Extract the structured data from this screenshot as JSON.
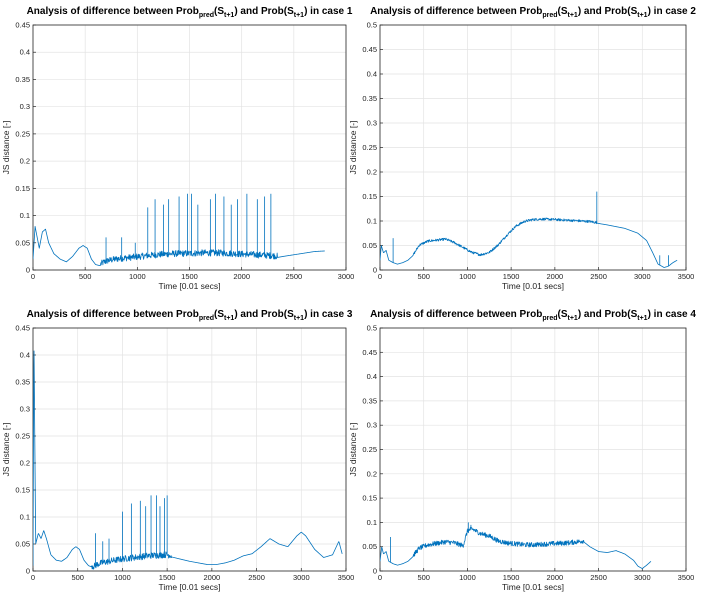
{
  "figure": {
    "line_color": "#0072BD",
    "grid_color": "#e3e3e3",
    "axis_color": "#262626"
  },
  "chart_data": [
    {
      "type": "line",
      "title_parts": [
        "Analysis of difference between Prob",
        "pred",
        "(S",
        "t+1",
        ") and Prob(S",
        "t+1",
        ") in case 1"
      ],
      "xlabel": "Time [0.01 secs]",
      "ylabel": "JS distance [-]",
      "xlim": [
        0,
        3000
      ],
      "ylim": [
        0,
        0.45
      ],
      "xticks": [
        0,
        500,
        1000,
        1500,
        2000,
        2500,
        3000
      ],
      "yticks": [
        0,
        0.05,
        0.1,
        0.15,
        0.2,
        0.25,
        0.3,
        0.35,
        0.4,
        0.45
      ],
      "grid": true,
      "series": [
        {
          "name": "JS distance",
          "x": [
            0,
            20,
            40,
            60,
            90,
            120,
            150,
            200,
            260,
            320,
            380,
            440,
            480,
            520,
            560,
            600,
            640,
            680,
            720,
            800,
            900,
            1000,
            1100,
            1200,
            1300,
            1400,
            1500,
            1600,
            1700,
            1800,
            1900,
            2000,
            2100,
            2200,
            2300,
            2340,
            2400,
            2500,
            2600,
            2700,
            2800
          ],
          "y": [
            0.02,
            0.08,
            0.06,
            0.04,
            0.07,
            0.075,
            0.05,
            0.03,
            0.02,
            0.015,
            0.025,
            0.04,
            0.045,
            0.04,
            0.02,
            0.01,
            0.008,
            0.012,
            0.015,
            0.018,
            0.02,
            0.022,
            0.024,
            0.026,
            0.027,
            0.028,
            0.028,
            0.029,
            0.029,
            0.029,
            0.028,
            0.027,
            0.026,
            0.025,
            0.024,
            0.023,
            0.025,
            0.028,
            0.031,
            0.034,
            0.035
          ],
          "spikes": [
            [
              1100,
              0.115
            ],
            [
              1170,
              0.13
            ],
            [
              1250,
              0.12
            ],
            [
              1300,
              0.13
            ],
            [
              1400,
              0.135
            ],
            [
              1480,
              0.14
            ],
            [
              1520,
              0.14
            ],
            [
              1580,
              0.12
            ],
            [
              1700,
              0.13
            ],
            [
              1750,
              0.14
            ],
            [
              1830,
              0.135
            ],
            [
              1900,
              0.12
            ],
            [
              1960,
              0.13
            ],
            [
              2050,
              0.14
            ],
            [
              2150,
              0.13
            ],
            [
              2220,
              0.135
            ],
            [
              2280,
              0.14
            ],
            [
              700,
              0.06
            ],
            [
              850,
              0.06
            ],
            [
              980,
              0.05
            ]
          ],
          "noise_range": [
            650,
            2340
          ],
          "noise_amplitude": 0.012
        }
      ]
    },
    {
      "type": "line",
      "title_parts": [
        "Analysis of difference between Prob",
        "pred",
        "(S",
        "t+1",
        ") and Prob(S",
        "t+1",
        ") in case 2"
      ],
      "xlabel": "Time [0.01 secs]",
      "ylabel": "JS distance [-]",
      "xlim": [
        0,
        3500
      ],
      "ylim": [
        0,
        0.5
      ],
      "xticks": [
        0,
        500,
        1000,
        1500,
        2000,
        2500,
        3000,
        3500
      ],
      "yticks": [
        0,
        0.05,
        0.1,
        0.15,
        0.2,
        0.25,
        0.3,
        0.35,
        0.4,
        0.45,
        0.5
      ],
      "grid": true,
      "series": [
        {
          "name": "JS distance",
          "x": [
            0,
            15,
            40,
            70,
            100,
            150,
            200,
            260,
            320,
            380,
            450,
            550,
            650,
            750,
            850,
            950,
            1050,
            1150,
            1250,
            1350,
            1450,
            1550,
            1650,
            1750,
            1850,
            2000,
            2200,
            2400,
            2500,
            2600,
            2800,
            2950,
            3050,
            3120,
            3180,
            3250,
            3300,
            3350,
            3400
          ],
          "y": [
            0.02,
            0.05,
            0.035,
            0.04,
            0.02,
            0.015,
            0.012,
            0.015,
            0.02,
            0.03,
            0.05,
            0.058,
            0.06,
            0.062,
            0.055,
            0.045,
            0.035,
            0.03,
            0.035,
            0.05,
            0.07,
            0.088,
            0.098,
            0.102,
            0.103,
            0.102,
            0.1,
            0.098,
            0.095,
            0.092,
            0.085,
            0.075,
            0.06,
            0.035,
            0.012,
            0.005,
            0.008,
            0.015,
            0.02
          ],
          "spikes": [
            [
              2480,
              0.16
            ],
            [
              150,
              0.065
            ],
            [
              3200,
              0.03
            ],
            [
              3300,
              0.03
            ]
          ],
          "noise_range": [
            380,
            2480
          ],
          "noise_amplitude": 0.005
        }
      ]
    },
    {
      "type": "line",
      "title_parts": [
        "Analysis of difference between Prob",
        "pred",
        "(S",
        "t+1",
        ") and Prob(S",
        "t+1",
        ") in case 3"
      ],
      "xlabel": "Time [0.01 secs]",
      "ylabel": "JS distance [-]",
      "xlim": [
        0,
        3500
      ],
      "ylim": [
        0,
        0.45
      ],
      "xticks": [
        0,
        500,
        1000,
        1500,
        2000,
        2500,
        3000,
        3500
      ],
      "yticks": [
        0,
        0.05,
        0.1,
        0.15,
        0.2,
        0.25,
        0.3,
        0.35,
        0.4,
        0.45
      ],
      "grid": true,
      "series": [
        {
          "name": "JS distance",
          "x": [
            0,
            10,
            30,
            60,
            90,
            120,
            150,
            200,
            260,
            320,
            380,
            440,
            480,
            520,
            570,
            620,
            680,
            720,
            800,
            900,
            1000,
            1100,
            1200,
            1300,
            1400,
            1500,
            1550,
            1650,
            1750,
            1850,
            1950,
            2050,
            2150,
            2250,
            2350,
            2450,
            2550,
            2650,
            2750,
            2850,
            2950,
            3000,
            3050,
            3150,
            3250,
            3350,
            3420,
            3460
          ],
          "y": [
            0.01,
            0.44,
            0.05,
            0.07,
            0.06,
            0.075,
            0.06,
            0.03,
            0.02,
            0.018,
            0.025,
            0.04,
            0.045,
            0.04,
            0.02,
            0.01,
            0.006,
            0.01,
            0.014,
            0.017,
            0.02,
            0.022,
            0.024,
            0.026,
            0.027,
            0.028,
            0.026,
            0.022,
            0.018,
            0.015,
            0.012,
            0.012,
            0.015,
            0.02,
            0.028,
            0.032,
            0.045,
            0.06,
            0.05,
            0.045,
            0.065,
            0.072,
            0.065,
            0.04,
            0.025,
            0.03,
            0.055,
            0.03
          ],
          "spikes": [
            [
              700,
              0.07
            ],
            [
              780,
              0.055
            ],
            [
              850,
              0.06
            ],
            [
              1000,
              0.11
            ],
            [
              1100,
              0.125
            ],
            [
              1200,
              0.13
            ],
            [
              1260,
              0.12
            ],
            [
              1320,
              0.14
            ],
            [
              1380,
              0.14
            ],
            [
              1420,
              0.12
            ],
            [
              1470,
              0.135
            ],
            [
              1500,
              0.14
            ]
          ],
          "noise_range": [
            650,
            1550
          ],
          "noise_amplitude": 0.012
        }
      ]
    },
    {
      "type": "line",
      "title_parts": [
        "Analysis of difference between Prob",
        "pred",
        "(S",
        "t+1",
        ") and Prob(S",
        "t+1",
        ") in case 4"
      ],
      "xlabel": "Time [0.01 secs]",
      "ylabel": "JS distance [-]",
      "xlim": [
        0,
        3500
      ],
      "ylim": [
        0,
        0.5
      ],
      "xticks": [
        0,
        500,
        1000,
        1500,
        2000,
        2500,
        3000,
        3500
      ],
      "yticks": [
        0,
        0.05,
        0.1,
        0.15,
        0.2,
        0.25,
        0.3,
        0.35,
        0.4,
        0.45,
        0.5
      ],
      "grid": true,
      "series": [
        {
          "name": "JS distance",
          "x": [
            0,
            20,
            40,
            70,
            100,
            150,
            200,
            260,
            320,
            380,
            450,
            550,
            650,
            750,
            850,
            950,
            1000,
            1050,
            1150,
            1250,
            1350,
            1450,
            1550,
            1650,
            1750,
            1850,
            1950,
            2050,
            2150,
            2250,
            2330,
            2400,
            2500,
            2600,
            2700,
            2800,
            2900,
            2950,
            3000,
            3050,
            3100
          ],
          "y": [
            0.02,
            0.05,
            0.035,
            0.04,
            0.02,
            0.015,
            0.012,
            0.015,
            0.02,
            0.03,
            0.045,
            0.052,
            0.055,
            0.058,
            0.056,
            0.05,
            0.08,
            0.085,
            0.075,
            0.07,
            0.06,
            0.056,
            0.054,
            0.052,
            0.052,
            0.053,
            0.054,
            0.055,
            0.056,
            0.058,
            0.06,
            0.05,
            0.04,
            0.038,
            0.042,
            0.035,
            0.022,
            0.01,
            0.005,
            0.012,
            0.02
          ],
          "spikes": [
            [
              1010,
              0.1
            ],
            [
              1040,
              0.095
            ],
            [
              120,
              0.07
            ]
          ],
          "noise_range": [
            380,
            2330
          ],
          "noise_amplitude": 0.01
        }
      ]
    }
  ]
}
